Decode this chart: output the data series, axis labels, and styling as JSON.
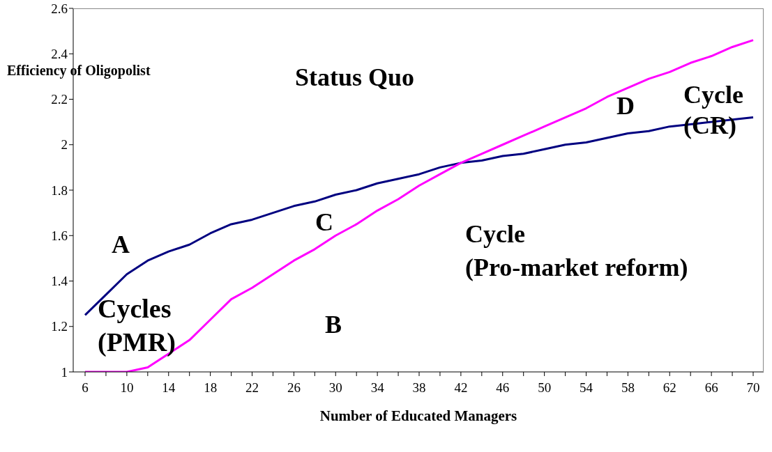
{
  "chart_data": {
    "type": "line",
    "xlabel": "Number of Educated Managers",
    "ylabel": "Efficiency of Oligopolist",
    "categories": [
      "6",
      null,
      "10",
      null,
      "14",
      null,
      "18",
      null,
      "22",
      null,
      "26",
      null,
      "30",
      null,
      "34",
      null,
      "38",
      null,
      "42",
      null,
      "46",
      null,
      "50",
      null,
      "54",
      null,
      "58",
      null,
      "62",
      null,
      "66",
      null,
      "70"
    ],
    "series": [
      {
        "color": "#000080",
        "values": [
          1.25,
          1.34,
          1.43,
          1.49,
          1.53,
          1.56,
          1.61,
          1.65,
          1.67,
          1.7,
          1.73,
          1.75,
          1.78,
          1.8,
          1.83,
          1.85,
          1.87,
          1.9,
          1.92,
          1.93,
          1.95,
          1.96,
          1.98,
          2.0,
          2.01,
          2.03,
          2.05,
          2.06,
          2.08,
          2.09,
          2.1,
          2.11,
          2.12
        ]
      },
      {
        "color": "#ff00ff",
        "values": [
          1.0,
          1.0,
          1.0,
          1.02,
          1.08,
          1.14,
          1.23,
          1.32,
          1.37,
          1.43,
          1.49,
          1.54,
          1.6,
          1.65,
          1.71,
          1.76,
          1.82,
          1.87,
          1.92,
          1.96,
          2.0,
          2.04,
          2.08,
          2.12,
          2.16,
          2.21,
          2.25,
          2.29,
          2.32,
          2.36,
          2.39,
          2.43,
          2.46
        ]
      }
    ],
    "annotations": [
      "Status Quo",
      "A",
      "B",
      "C",
      "D",
      "Cycles\n(PMR)",
      "Cycle\n(CR)",
      "Cycle\n(Pro-market reform)"
    ],
    "ylim": [
      1,
      2.6
    ],
    "yticks": [
      1,
      1.2,
      1.4,
      1.6,
      1.8,
      2,
      2.2,
      2.4,
      2.6
    ],
    "grid": false,
    "marker": "none",
    "line_style": "solid"
  }
}
